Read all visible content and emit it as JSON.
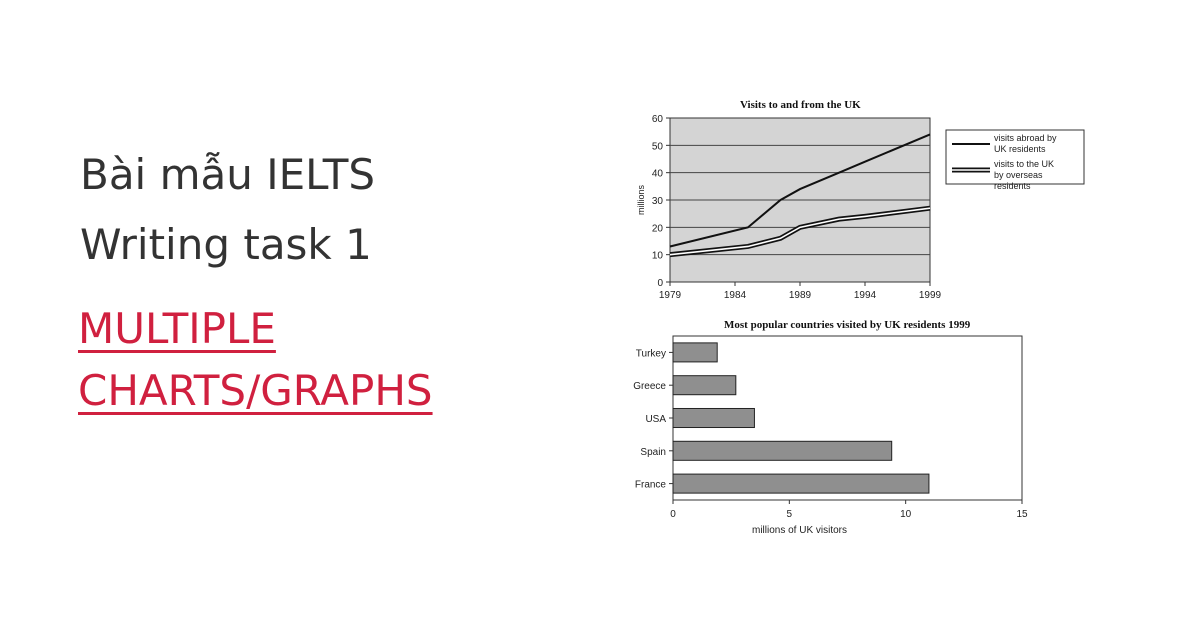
{
  "hero": {
    "line1": "Bài mẫu IELTS",
    "line2": "Writing task 1",
    "sub1": " MULTIPLE",
    "sub2": "CHARTS/GRAPHS"
  },
  "chart_data": [
    {
      "type": "line",
      "title": "Visits to and from the UK",
      "ylabel": "millions",
      "xlabel": "",
      "x": [
        1979,
        1984,
        1985,
        1987.5,
        1989,
        1992,
        1994,
        1999
      ],
      "xticks": [
        "1979",
        "1984",
        "1989",
        "1994",
        "1999"
      ],
      "yticks": [
        "0",
        "10",
        "20",
        "30",
        "40",
        "50",
        "60"
      ],
      "xlim": [
        1979,
        1999
      ],
      "ylim": [
        0,
        60
      ],
      "grid": true,
      "legend_position": "right",
      "series": [
        {
          "name": "visits abroad by UK residents",
          "style": "solid",
          "x": [
            1979,
            1985,
            1987.5,
            1989,
            1992,
            1994,
            1999
          ],
          "values": [
            13,
            20,
            30,
            34,
            40,
            44,
            54
          ]
        },
        {
          "name": "visits to the UK by overseas residents",
          "style": "double",
          "x": [
            1979,
            1985,
            1987.5,
            1989,
            1992,
            1994,
            1999
          ],
          "values": [
            10,
            13,
            16,
            20,
            23,
            24,
            27
          ]
        }
      ],
      "colors": {
        "plot_bg": "#d4d4d4",
        "line": "#111111"
      }
    },
    {
      "type": "bar",
      "orientation": "horizontal",
      "title": "Most popular countries visited by UK residents 1999",
      "xlabel": "millions of UK visitors",
      "ylabel": "",
      "categories": [
        "Turkey",
        "Greece",
        "USA",
        "Spain",
        "France"
      ],
      "values": [
        1.9,
        2.7,
        3.5,
        9.4,
        11
      ],
      "xticks": [
        "0",
        "5",
        "10",
        "15"
      ],
      "xlim": [
        0,
        15
      ],
      "colors": {
        "bar": "#8f8f8f",
        "bar_border": "#222222"
      }
    }
  ]
}
